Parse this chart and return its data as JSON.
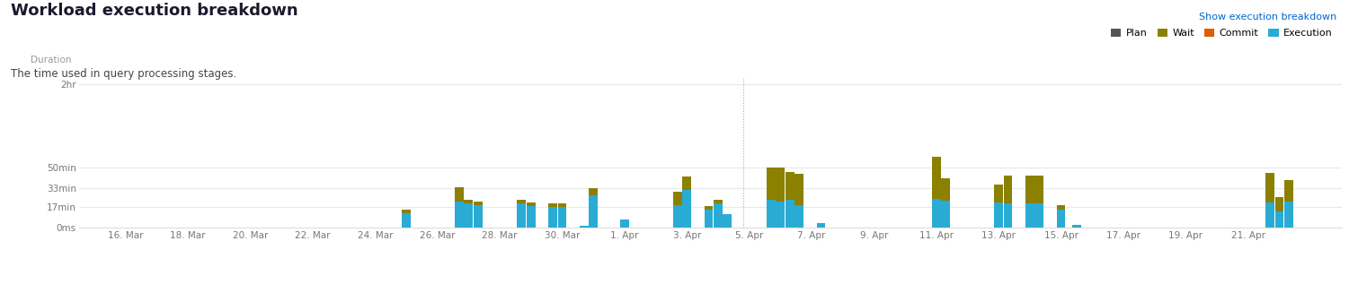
{
  "title": "Workload execution breakdown",
  "subtitle": "The time used in query processing stages.",
  "ylabel": "Duration",
  "legend_items": [
    "Plan",
    "Wait",
    "Commit",
    "Execution"
  ],
  "legend_extra": "Show execution breakdown",
  "colors": {
    "plan": "#555555",
    "wait": "#8B8000",
    "commit": "#E05C00",
    "execution": "#29ABD4",
    "background": "#ffffff",
    "gridline": "#e8e8e8",
    "tick_color": "#777777",
    "title_color": "#1a1a2e",
    "subtitle_color": "#444444",
    "ylabel_color": "#999999",
    "spine_color": "#dddddd",
    "vline_color": "#aaaaaa"
  },
  "yticks_labels": [
    "0ms",
    "17min",
    "33min",
    "50min",
    "2hr"
  ],
  "yticks_values": [
    0,
    1020,
    1980,
    3000,
    7200
  ],
  "ylim": [
    0,
    7600
  ],
  "bars": [
    {
      "x": 10.0,
      "execution": 700,
      "wait": 200,
      "plan": 0,
      "commit": 0
    },
    {
      "x": 11.7,
      "execution": 1300,
      "wait": 700,
      "plan": 0,
      "commit": 0
    },
    {
      "x": 12.0,
      "execution": 1200,
      "wait": 200,
      "plan": 0,
      "commit": 0
    },
    {
      "x": 12.3,
      "execution": 1100,
      "wait": 200,
      "plan": 0,
      "commit": 0
    },
    {
      "x": 13.7,
      "execution": 1200,
      "wait": 200,
      "plan": 0,
      "commit": 0
    },
    {
      "x": 14.0,
      "execution": 1050,
      "wait": 200,
      "plan": 0,
      "commit": 0
    },
    {
      "x": 14.7,
      "execution": 1000,
      "wait": 200,
      "plan": 0,
      "commit": 0
    },
    {
      "x": 15.0,
      "execution": 1000,
      "wait": 200,
      "plan": 0,
      "commit": 0
    },
    {
      "x": 15.7,
      "execution": 50,
      "wait": 0,
      "plan": 0,
      "commit": 0
    },
    {
      "x": 16.0,
      "execution": 1600,
      "wait": 350,
      "plan": 0,
      "commit": 0
    },
    {
      "x": 17.0,
      "execution": 400,
      "wait": 0,
      "plan": 0,
      "commit": 0
    },
    {
      "x": 18.7,
      "execution": 1100,
      "wait": 700,
      "plan": 0,
      "commit": 0
    },
    {
      "x": 19.0,
      "execution": 1900,
      "wait": 650,
      "plan": 0,
      "commit": 0
    },
    {
      "x": 19.7,
      "execution": 900,
      "wait": 180,
      "plan": 0,
      "commit": 0
    },
    {
      "x": 20.0,
      "execution": 1200,
      "wait": 180,
      "plan": 0,
      "commit": 0
    },
    {
      "x": 20.3,
      "execution": 650,
      "wait": 0,
      "plan": 0,
      "commit": 0
    },
    {
      "x": 21.7,
      "execution": 1400,
      "wait": 1600,
      "plan": 0,
      "commit": 0
    },
    {
      "x": 22.0,
      "execution": 1300,
      "wait": 1700,
      "plan": 0,
      "commit": 0
    },
    {
      "x": 22.3,
      "execution": 1400,
      "wait": 1400,
      "plan": 0,
      "commit": 0
    },
    {
      "x": 22.6,
      "execution": 1100,
      "wait": 1600,
      "plan": 0,
      "commit": 0
    },
    {
      "x": 23.3,
      "execution": 200,
      "wait": 0,
      "plan": 0,
      "commit": 0
    },
    {
      "x": 27.0,
      "execution": 1450,
      "wait": 2100,
      "plan": 0,
      "commit": 0
    },
    {
      "x": 27.3,
      "execution": 1350,
      "wait": 1100,
      "plan": 0,
      "commit": 0
    },
    {
      "x": 29.0,
      "execution": 1250,
      "wait": 900,
      "plan": 0,
      "commit": 0
    },
    {
      "x": 29.3,
      "execution": 1200,
      "wait": 1400,
      "plan": 0,
      "commit": 0
    },
    {
      "x": 30.0,
      "execution": 1200,
      "wait": 1400,
      "plan": 0,
      "commit": 0
    },
    {
      "x": 30.3,
      "execution": 1200,
      "wait": 1400,
      "plan": 0,
      "commit": 0
    },
    {
      "x": 31.0,
      "execution": 900,
      "wait": 200,
      "plan": 0,
      "commit": 0
    },
    {
      "x": 31.5,
      "execution": 100,
      "wait": 0,
      "plan": 0,
      "commit": 0
    },
    {
      "x": 37.7,
      "execution": 1250,
      "wait": 1500,
      "plan": 0,
      "commit": 0
    },
    {
      "x": 38.0,
      "execution": 800,
      "wait": 700,
      "plan": 0,
      "commit": 0
    },
    {
      "x": 38.3,
      "execution": 1300,
      "wait": 1100,
      "plan": 0,
      "commit": 0
    }
  ],
  "bar_width": 0.28,
  "xaxis_ticks": [
    {
      "label": "16. Mar",
      "x": 1
    },
    {
      "label": "18. Mar",
      "x": 3
    },
    {
      "label": "20. Mar",
      "x": 5
    },
    {
      "label": "22. Mar",
      "x": 7
    },
    {
      "label": "24. Mar",
      "x": 9
    },
    {
      "label": "26. Mar",
      "x": 11
    },
    {
      "label": "28. Mar",
      "x": 13
    },
    {
      "label": "30. Mar",
      "x": 15
    },
    {
      "label": "1. Apr",
      "x": 17
    },
    {
      "label": "3. Apr",
      "x": 19
    },
    {
      "label": "5. Apr",
      "x": 21
    },
    {
      "label": "7. Apr",
      "x": 23
    },
    {
      "label": "9. Apr",
      "x": 25
    },
    {
      "label": "11. Apr",
      "x": 27
    },
    {
      "label": "13. Apr",
      "x": 29
    },
    {
      "label": "15. Apr",
      "x": 31
    },
    {
      "label": "17. Apr",
      "x": 33
    },
    {
      "label": "19. Apr",
      "x": 35
    },
    {
      "label": "21. Apr",
      "x": 37
    }
  ],
  "xlim": [
    -0.5,
    40.0
  ],
  "vline_x": 20.8
}
